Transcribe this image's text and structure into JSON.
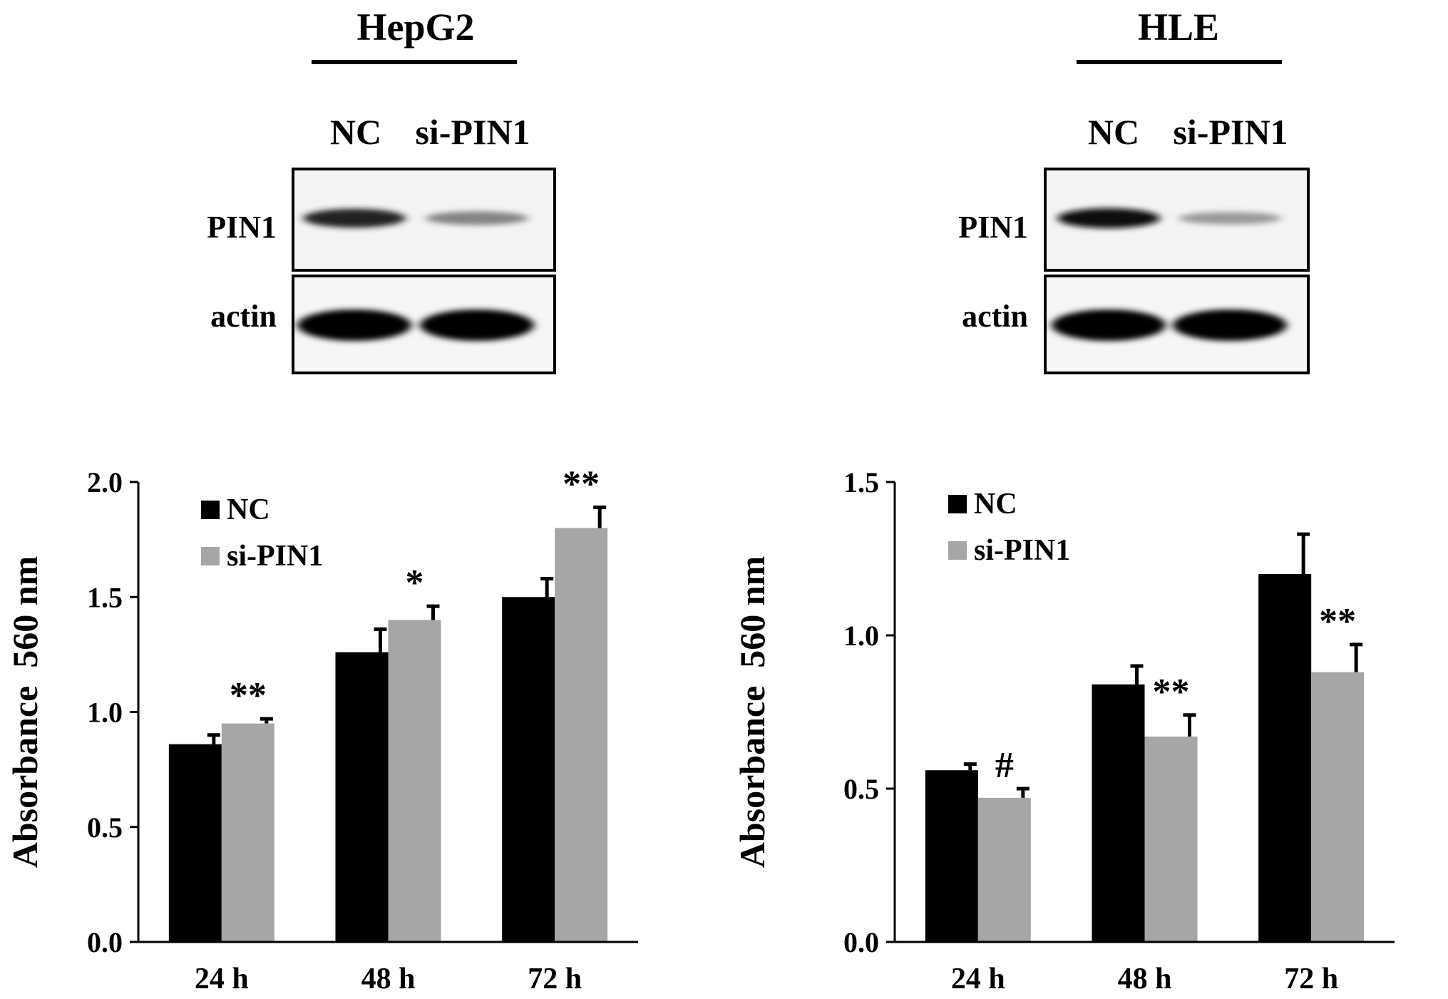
{
  "panels": [
    {
      "cell_line": "HepG2",
      "lane_labels": [
        "NC",
        "si-PIN1"
      ],
      "blot_rows": [
        "PIN1",
        "actin"
      ],
      "pin1_band_intensity": [
        0.9,
        0.45
      ],
      "actin_band_intensity": [
        1.0,
        1.0
      ]
    },
    {
      "cell_line": "HLE",
      "lane_labels": [
        "NC",
        "si-PIN1"
      ],
      "blot_rows": [
        "PIN1",
        "actin"
      ],
      "pin1_band_intensity": [
        1.0,
        0.35
      ],
      "actin_band_intensity": [
        1.0,
        1.0
      ]
    }
  ],
  "colors": {
    "NC": "#000000",
    "si-PIN1": "#a6a6a6",
    "axis": "#000000"
  },
  "chart_data": [
    {
      "type": "bar",
      "title": "",
      "xlabel": "",
      "ylabel": "Absorbance  560 nm",
      "ylim": [
        0,
        2.0
      ],
      "yticks": [
        "0.0",
        "0.5",
        "1.0",
        "1.5",
        "2.0"
      ],
      "categories": [
        "24 h",
        "48 h",
        "72 h"
      ],
      "series": [
        {
          "name": "NC",
          "values": [
            0.86,
            1.26,
            1.5
          ],
          "errors": [
            0.04,
            0.1,
            0.08
          ]
        },
        {
          "name": "si-PIN1",
          "values": [
            0.95,
            1.4,
            1.8
          ],
          "errors": [
            0.02,
            0.06,
            0.09
          ]
        }
      ],
      "annotations": [
        "**",
        "*",
        "**"
      ],
      "legend_position": "top-left",
      "grid": false
    },
    {
      "type": "bar",
      "title": "",
      "xlabel": "",
      "ylabel": "Absorbance  560 nm",
      "ylim": [
        0,
        1.5
      ],
      "yticks": [
        "0.0",
        "0.5",
        "1.0",
        "1.5"
      ],
      "categories": [
        "24 h",
        "48 h",
        "72 h"
      ],
      "series": [
        {
          "name": "NC",
          "values": [
            0.56,
            0.84,
            1.2
          ],
          "errors": [
            0.02,
            0.06,
            0.13
          ]
        },
        {
          "name": "si-PIN1",
          "values": [
            0.47,
            0.67,
            0.88
          ],
          "errors": [
            0.03,
            0.07,
            0.09
          ]
        }
      ],
      "annotations": [
        "#",
        "**",
        "**"
      ],
      "legend_position": "top-left",
      "grid": false
    }
  ]
}
